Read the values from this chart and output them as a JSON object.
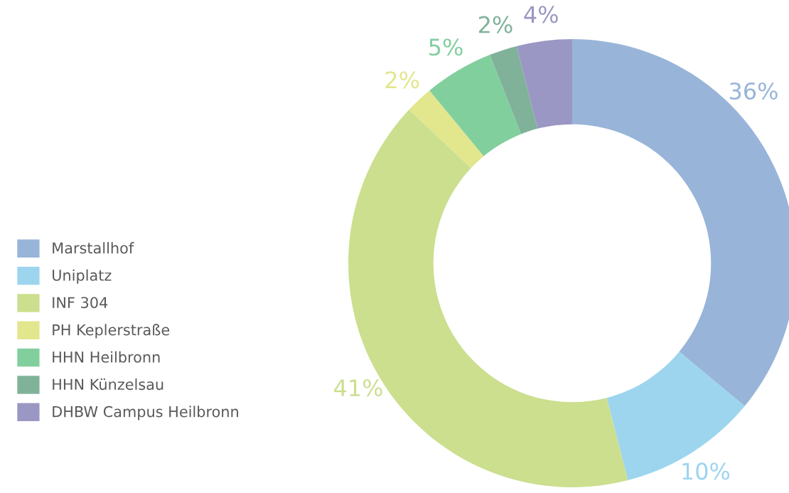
{
  "chart_data": {
    "type": "donut",
    "categories": [
      "Marstallhof",
      "Uniplatz",
      "INF 304",
      "PH Keplerstraße",
      "HHN Heilbronn",
      "HHN Künzelsau",
      "DHBW Campus Heilbronn"
    ],
    "values": [
      36,
      10,
      41,
      2,
      5,
      2,
      4
    ],
    "value_labels": [
      "36%",
      "10%",
      "41%",
      "2%",
      "5%",
      "2%",
      "4%"
    ],
    "colors": [
      "#98b4d9",
      "#9dd5ef",
      "#cbdf8e",
      "#e2e68c",
      "#82cf9e",
      "#80b29a",
      "#9a97c4"
    ],
    "legend": "left"
  }
}
